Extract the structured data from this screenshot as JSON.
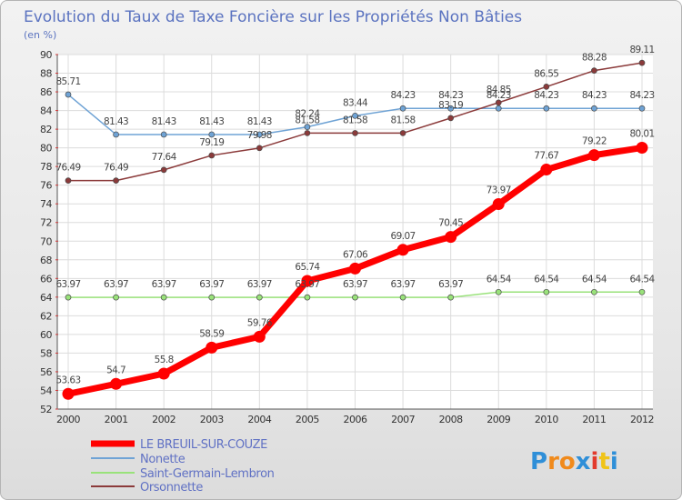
{
  "chart_data": {
    "type": "line",
    "title": "Evolution du Taux de Taxe Foncière sur les Propriétés Non Bâties",
    "ylabel": "(en %)",
    "xlabel": "",
    "categories": [
      "2000",
      "2001",
      "2002",
      "2003",
      "2004",
      "2005",
      "2006",
      "2007",
      "2008",
      "2009",
      "2010",
      "2011",
      "2012"
    ],
    "ylim": [
      52,
      90
    ],
    "yticks": [
      52,
      54,
      56,
      58,
      60,
      62,
      64,
      66,
      68,
      70,
      72,
      74,
      76,
      78,
      80,
      82,
      84,
      86,
      88,
      90
    ],
    "grid": true,
    "series": [
      {
        "name": "LE BREUIL-SUR-COUZE",
        "color": "#ff0000",
        "values": [
          53.63,
          54.7,
          55.8,
          58.59,
          59.76,
          65.74,
          67.06,
          69.07,
          70.45,
          73.97,
          77.67,
          79.22,
          80.01
        ],
        "labels": [
          "53.63",
          "54.7",
          "55.8",
          "58.59",
          "59.76",
          "65.74",
          "67.06",
          "69.07",
          "70.45",
          "73.97",
          "77.67",
          "79.22",
          "80.01"
        ]
      },
      {
        "name": "Nonette",
        "color": "#6fa3d5",
        "values": [
          85.71,
          81.43,
          81.43,
          81.43,
          81.43,
          82.24,
          83.44,
          84.23,
          84.23,
          84.23,
          84.23,
          84.23,
          84.23
        ],
        "labels": [
          "85.71",
          "81.43",
          "81.43",
          "81.43",
          "81.43",
          "82.24",
          "83.44",
          "84.23",
          "84.23",
          "84.23",
          "84.23",
          "84.23",
          "84.23"
        ]
      },
      {
        "name": "Saint-Germain-Lembron",
        "color": "#99e27a",
        "values": [
          63.97,
          63.97,
          63.97,
          63.97,
          63.97,
          63.97,
          63.97,
          63.97,
          63.97,
          64.54,
          64.54,
          64.54,
          64.54
        ],
        "labels": [
          "63.97",
          "63.97",
          "63.97",
          "63.97",
          "63.97",
          "63.97",
          "63.97",
          "63.97",
          "63.97",
          "64.54",
          "64.54",
          "64.54",
          "64.54"
        ]
      },
      {
        "name": "Orsonnette",
        "color": "#8b3a3a",
        "values": [
          76.49,
          76.49,
          77.64,
          79.19,
          79.98,
          81.58,
          81.58,
          81.58,
          83.19,
          84.85,
          86.55,
          88.28,
          89.11
        ],
        "labels": [
          "76.49",
          "76.49",
          "77.64",
          "79.19",
          "79.98",
          "81.58",
          "81.58",
          "81.58",
          "83.19",
          "84.85",
          "86.55",
          "88.28",
          "89.11"
        ]
      }
    ]
  },
  "logo": {
    "text": "Proxiti"
  }
}
